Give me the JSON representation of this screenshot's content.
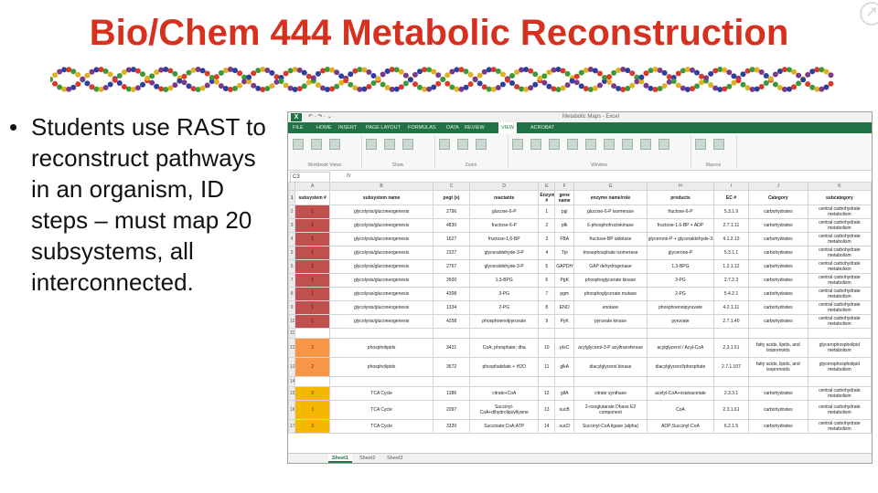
{
  "slide": {
    "title": "Bio/Chem 444 Metabolic Reconstruction",
    "bullet": "Students use RAST to reconstruct pathways in an organism, ID steps – must map 20 subsystems, all interconnected."
  },
  "colors": {
    "title": "#d6301f",
    "excel_green": "#217346",
    "red_fill": "#c0504d",
    "orange_fill": "#f79646",
    "yellow_fill": "#f5b800"
  },
  "excel": {
    "logo": "X",
    "quick_access": "↶ · ↷ · ⌄",
    "window_title": "Metabolic Maps - Excel",
    "tabs": [
      "FILE",
      "HOME",
      "INSERT",
      "PAGE LAYOUT",
      "FORMULAS",
      "DATA",
      "REVIEW",
      "VIEW",
      "ACROBAT"
    ],
    "active_tab": "VIEW",
    "ribbon_groups": [
      "Workbook Views",
      "Show",
      "Zoom",
      "Window",
      "Macros"
    ],
    "name_box": "C3",
    "fx_label": "fx",
    "column_letters": [
      "A",
      "B",
      "C",
      "D",
      "E",
      "F",
      "G",
      "H",
      "I",
      "J",
      "K"
    ],
    "headers": [
      "subsystem #",
      "subsystem name",
      "pegt (s)",
      "reactants",
      "Enzyme #",
      "gene name",
      "enzyme name/role",
      "products",
      "EC #",
      "Category",
      "subcategory"
    ],
    "rows": [
      {
        "num": "2",
        "color": "red",
        "cells": [
          "1",
          "glycolysis/gluconeogenesis",
          "2796",
          "glucose-6-P",
          "1",
          "pgi",
          "glucose-6-P isomerase",
          "fructose-6-P",
          "5.3.1.9",
          "carbohydrates",
          "central carbohydrate metabolism"
        ]
      },
      {
        "num": "3",
        "color": "red",
        "cells": [
          "1",
          "glycolysis/gluconeogenesis",
          "4830",
          "fructose-6-P",
          "2",
          "pfk",
          "6-phosphofructokinase",
          "fructose-1,6-BP + ADP",
          "2.7.1.11",
          "carbohydrates",
          "central carbohydrate metabolism"
        ]
      },
      {
        "num": "4",
        "color": "red",
        "cells": [
          "1",
          "glycolysis/gluconeogenesis",
          "1627",
          "fructose-1,6-BP",
          "3",
          "FBA",
          "fructose-BP aldolase",
          "glycerone-P + glyceraldehyde-3-P",
          "4.1.2.13",
          "carbohydrates",
          "central carbohydrate metabolism"
        ]
      },
      {
        "num": "5",
        "color": "red",
        "cells": [
          "1",
          "glycolysis/gluconeogenesis",
          "2327",
          "glyceraldehyde-3-P",
          "4",
          "Tpi",
          "triosephosphate isomerase",
          "glycerone-P",
          "5.3.1.1",
          "carbohydrates",
          "central carbohydrate metabolism"
        ]
      },
      {
        "num": "6",
        "color": "red",
        "cells": [
          "1",
          "glycolysis/gluconeogenesis",
          "2767",
          "glyceraldehyde-3-P",
          "5",
          "GAPDH",
          "GAP dehydrogenase",
          "1,3-BPG",
          "1.2.1.12",
          "carbohydrates",
          "central carbohydrate metabolism"
        ]
      },
      {
        "num": "7",
        "color": "red",
        "cells": [
          "1",
          "glycolysis/gluconeogenesis",
          "3500",
          "1,3-BPG",
          "6",
          "PgK",
          "phosphoglycerate kinase",
          "3-PG",
          "2.7.2.3",
          "carbohydrates",
          "central carbohydrate metabolism"
        ]
      },
      {
        "num": "8",
        "color": "red",
        "cells": [
          "1",
          "glycolysis/gluconeogenesis",
          "4308",
          "3-PG",
          "7",
          "pgm",
          "phosphoglycerate mutase",
          "2-PG",
          "5.4.2.1",
          "carbohydrates",
          "central carbohydrate metabolism"
        ]
      },
      {
        "num": "9",
        "color": "red",
        "cells": [
          "1",
          "glycolysis/gluconeogenesis",
          "1334",
          "2-PG",
          "8",
          "ENO",
          "enolase",
          "phosphoenolpyruvate",
          "4.2.1.11",
          "carbohydrates",
          "central carbohydrate metabolism"
        ]
      },
      {
        "num": "10",
        "color": "red",
        "cells": [
          "1",
          "glycolysis/gluconeogenesis",
          "4258",
          "phosphoenolpyruvate",
          "9",
          "PyK",
          "pyruvate kinase",
          "pyruvate",
          "2.7.1.40",
          "carbohydrates",
          "central carbohydrate metabolism"
        ]
      },
      {
        "num": "11",
        "color": "blank",
        "cells": [
          "",
          "",
          "",
          "",
          "",
          "",
          "",
          "",
          "",
          "",
          ""
        ]
      },
      {
        "num": "12",
        "color": "orange",
        "tall": true,
        "cells": [
          "2",
          "phospholipids",
          "3421",
          "CoA; phosphate; dha",
          "10",
          "plsC",
          "acylglycerol-3-P acyltransferase",
          "acylglycerol / Acyl-CoA",
          "2.3.1.51",
          "fatty acids, lipids, and isoprenoids",
          "glycerophospholipid metabolism"
        ]
      },
      {
        "num": "13",
        "color": "orange",
        "tall": true,
        "cells": [
          "2",
          "phospholipids",
          "3672",
          "phosphatidate + H2O",
          "11",
          "glkA",
          "diacylglycerol kinase",
          "diacylglycerol/phosphate",
          "2.7.1.107",
          "fatty acids, lipids, and isoprenoids",
          "glycerophospholipid metabolism"
        ]
      },
      {
        "num": "14",
        "color": "blank",
        "cells": [
          "",
          "",
          "",
          "",
          "",
          "",
          "",
          "",
          "",
          "",
          ""
        ]
      },
      {
        "num": "15",
        "color": "yellow",
        "cells": [
          "3",
          "TCA Cycle",
          "1386",
          "citrate+CoA",
          "12",
          "gltA",
          "citrate synthase",
          "acetyl-CoA+oxaloacetate",
          "2.3.3.1",
          "carbohydrates",
          "central carbohydrate metabolism"
        ]
      },
      {
        "num": "16",
        "color": "yellow",
        "tall": true,
        "cells": [
          "3",
          "TCA Cycle",
          "2097",
          "Succinyl-CoA+dihydrolipoyllysine",
          "13",
          "sucB",
          "2-oxoglutarate Dhase E2 component",
          "CoA",
          "2.3.1.61",
          "carbohydrates",
          "central carbohydrate metabolism"
        ]
      },
      {
        "num": "17",
        "color": "yellow",
        "cells": [
          "3",
          "TCA Cycle",
          "3320",
          "Succinate;CoA;ATP",
          "14",
          "sucD",
          "Succinyl-CoA ligase (alpha)",
          "ADP;Succinyl-CoA",
          "6.2.1.5",
          "carbohydrates",
          "central carbohydrate metabolism"
        ]
      }
    ],
    "sheet_tabs": [
      "Sheet1",
      "Sheet2",
      "Sheet3"
    ],
    "active_sheet": "Sheet1",
    "corner_icon": "arrow-icon"
  }
}
